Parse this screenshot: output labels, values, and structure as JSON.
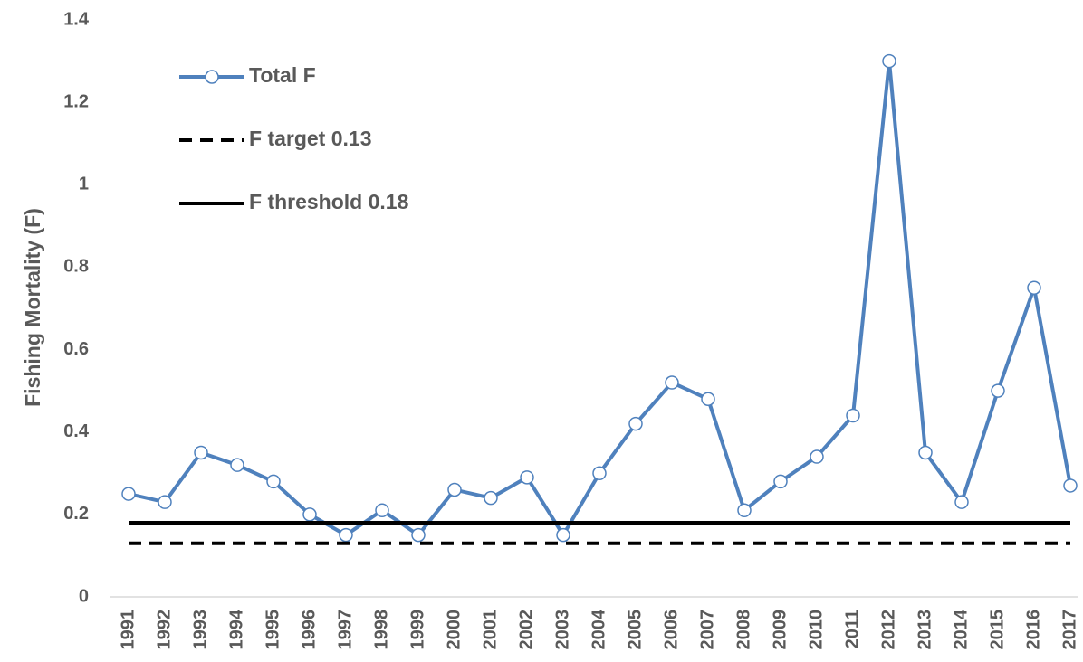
{
  "chart_data": {
    "type": "line",
    "y_label": "Fishing Mortality (F)",
    "categories": [
      "1991",
      "1992",
      "1993",
      "1994",
      "1995",
      "1996",
      "1997",
      "1998",
      "1999",
      "2000",
      "2001",
      "2002",
      "2003",
      "2004",
      "2005",
      "2006",
      "2007",
      "2008",
      "2009",
      "2010",
      "2011",
      "2012",
      "2013",
      "2014",
      "2015",
      "2016",
      "2017"
    ],
    "series": [
      {
        "name": "Total F",
        "color": "#4f81bd",
        "markers": true,
        "dashed": false,
        "values": [
          0.25,
          0.23,
          0.35,
          0.32,
          0.28,
          0.2,
          0.15,
          0.21,
          0.15,
          0.26,
          0.24,
          0.29,
          0.15,
          0.3,
          0.42,
          0.52,
          0.48,
          0.21,
          0.28,
          0.34,
          0.44,
          1.3,
          0.35,
          0.23,
          0.5,
          0.75,
          0.27
        ]
      },
      {
        "name": "F target 0.13",
        "color": "#000000",
        "markers": false,
        "dashed": true,
        "values": [
          0.13,
          0.13,
          0.13,
          0.13,
          0.13,
          0.13,
          0.13,
          0.13,
          0.13,
          0.13,
          0.13,
          0.13,
          0.13,
          0.13,
          0.13,
          0.13,
          0.13,
          0.13,
          0.13,
          0.13,
          0.13,
          0.13,
          0.13,
          0.13,
          0.13,
          0.13,
          0.13
        ]
      },
      {
        "name": "F threshold 0.18",
        "color": "#000000",
        "markers": false,
        "dashed": false,
        "values": [
          0.18,
          0.18,
          0.18,
          0.18,
          0.18,
          0.18,
          0.18,
          0.18,
          0.18,
          0.18,
          0.18,
          0.18,
          0.18,
          0.18,
          0.18,
          0.18,
          0.18,
          0.18,
          0.18,
          0.18,
          0.18,
          0.18,
          0.18,
          0.18,
          0.18,
          0.18,
          0.18
        ]
      }
    ],
    "ylim": [
      0,
      1.4
    ],
    "yticks": [
      0,
      0.2,
      0.4,
      0.6,
      0.8,
      1,
      1.2,
      1.4
    ],
    "grid": false,
    "legend": "top-left"
  }
}
